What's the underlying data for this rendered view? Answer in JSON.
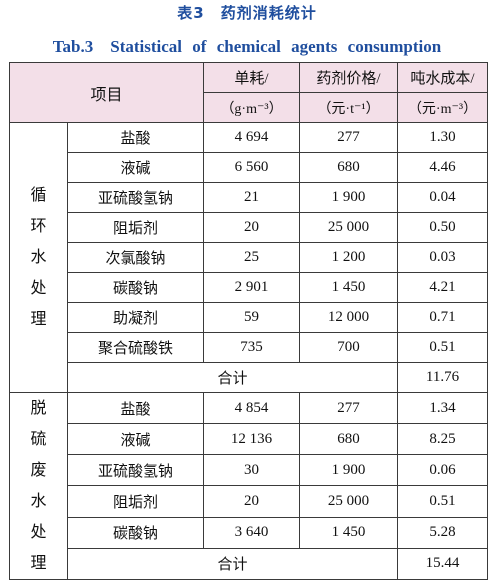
{
  "title_cn": "表3　药剂消耗统计",
  "title_en": "Tab.3　Statistical of chemical agents consumption",
  "header": {
    "item": "项目",
    "col1": "单耗/",
    "col1_unit": "（g·m⁻³）",
    "col2": "药剂价格/",
    "col2_unit": "（元·t⁻¹）",
    "col3": "吨水成本/",
    "col3_unit": "（元·m⁻³）"
  },
  "sections": [
    {
      "label_chars": [
        "循",
        "环",
        "水",
        "处",
        "理"
      ],
      "rows": [
        {
          "name": "盐酸",
          "consumption": "4 694",
          "price": "277",
          "cost": "1.30"
        },
        {
          "name": "液碱",
          "consumption": "6 560",
          "price": "680",
          "cost": "4.46"
        },
        {
          "name": "亚硫酸氢钠",
          "consumption": "21",
          "price": "1 900",
          "cost": "0.04"
        },
        {
          "name": "阻垢剂",
          "consumption": "20",
          "price": "25 000",
          "cost": "0.50"
        },
        {
          "name": "次氯酸钠",
          "consumption": "25",
          "price": "1 200",
          "cost": "0.03"
        },
        {
          "name": "碳酸钠",
          "consumption": "2 901",
          "price": "1 450",
          "cost": "4.21"
        },
        {
          "name": "助凝剂",
          "consumption": "59",
          "price": "12 000",
          "cost": "0.71"
        },
        {
          "name": "聚合硫酸铁",
          "consumption": "735",
          "price": "700",
          "cost": "0.51"
        }
      ],
      "total_label": "合计",
      "total_cost": "11.76"
    },
    {
      "label_chars": [
        "脱",
        "硫",
        "废",
        "水",
        "处",
        "理"
      ],
      "rows": [
        {
          "name": "盐酸",
          "consumption": "4 854",
          "price": "277",
          "cost": "1.34"
        },
        {
          "name": "液碱",
          "consumption": "12 136",
          "price": "680",
          "cost": "8.25"
        },
        {
          "name": "亚硫酸氢钠",
          "consumption": "30",
          "price": "1 900",
          "cost": "0.06"
        },
        {
          "name": "阻垢剂",
          "consumption": "20",
          "price": "25 000",
          "cost": "0.51"
        },
        {
          "name": "碳酸钠",
          "consumption": "3 640",
          "price": "1 450",
          "cost": "5.28"
        }
      ],
      "total_label": "合计",
      "total_cost": "15.44"
    }
  ]
}
